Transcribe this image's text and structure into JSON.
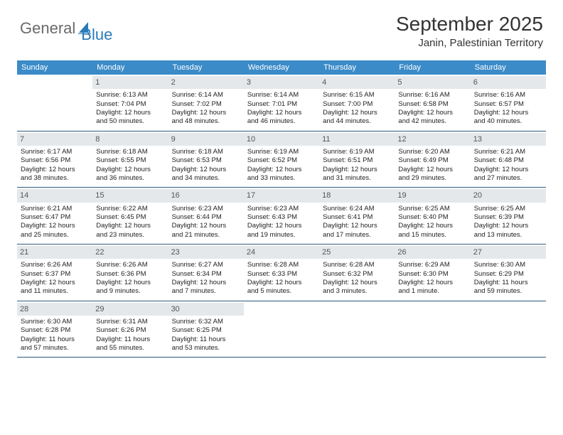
{
  "logo": {
    "text1": "General",
    "text2": "Blue"
  },
  "title": "September 2025",
  "location": "Janin, Palestinian Territory",
  "header_bg": "#3b8bc8",
  "row_border": "#2e5a7c",
  "daynum_bg": "#e4e8eb",
  "weekdays": [
    "Sunday",
    "Monday",
    "Tuesday",
    "Wednesday",
    "Thursday",
    "Friday",
    "Saturday"
  ],
  "weeks": [
    [
      null,
      {
        "d": "1",
        "sr": "Sunrise: 6:13 AM",
        "ss": "Sunset: 7:04 PM",
        "dl1": "Daylight: 12 hours",
        "dl2": "and 50 minutes."
      },
      {
        "d": "2",
        "sr": "Sunrise: 6:14 AM",
        "ss": "Sunset: 7:02 PM",
        "dl1": "Daylight: 12 hours",
        "dl2": "and 48 minutes."
      },
      {
        "d": "3",
        "sr": "Sunrise: 6:14 AM",
        "ss": "Sunset: 7:01 PM",
        "dl1": "Daylight: 12 hours",
        "dl2": "and 46 minutes."
      },
      {
        "d": "4",
        "sr": "Sunrise: 6:15 AM",
        "ss": "Sunset: 7:00 PM",
        "dl1": "Daylight: 12 hours",
        "dl2": "and 44 minutes."
      },
      {
        "d": "5",
        "sr": "Sunrise: 6:16 AM",
        "ss": "Sunset: 6:58 PM",
        "dl1": "Daylight: 12 hours",
        "dl2": "and 42 minutes."
      },
      {
        "d": "6",
        "sr": "Sunrise: 6:16 AM",
        "ss": "Sunset: 6:57 PM",
        "dl1": "Daylight: 12 hours",
        "dl2": "and 40 minutes."
      }
    ],
    [
      {
        "d": "7",
        "sr": "Sunrise: 6:17 AM",
        "ss": "Sunset: 6:56 PM",
        "dl1": "Daylight: 12 hours",
        "dl2": "and 38 minutes."
      },
      {
        "d": "8",
        "sr": "Sunrise: 6:18 AM",
        "ss": "Sunset: 6:55 PM",
        "dl1": "Daylight: 12 hours",
        "dl2": "and 36 minutes."
      },
      {
        "d": "9",
        "sr": "Sunrise: 6:18 AM",
        "ss": "Sunset: 6:53 PM",
        "dl1": "Daylight: 12 hours",
        "dl2": "and 34 minutes."
      },
      {
        "d": "10",
        "sr": "Sunrise: 6:19 AM",
        "ss": "Sunset: 6:52 PM",
        "dl1": "Daylight: 12 hours",
        "dl2": "and 33 minutes."
      },
      {
        "d": "11",
        "sr": "Sunrise: 6:19 AM",
        "ss": "Sunset: 6:51 PM",
        "dl1": "Daylight: 12 hours",
        "dl2": "and 31 minutes."
      },
      {
        "d": "12",
        "sr": "Sunrise: 6:20 AM",
        "ss": "Sunset: 6:49 PM",
        "dl1": "Daylight: 12 hours",
        "dl2": "and 29 minutes."
      },
      {
        "d": "13",
        "sr": "Sunrise: 6:21 AM",
        "ss": "Sunset: 6:48 PM",
        "dl1": "Daylight: 12 hours",
        "dl2": "and 27 minutes."
      }
    ],
    [
      {
        "d": "14",
        "sr": "Sunrise: 6:21 AM",
        "ss": "Sunset: 6:47 PM",
        "dl1": "Daylight: 12 hours",
        "dl2": "and 25 minutes."
      },
      {
        "d": "15",
        "sr": "Sunrise: 6:22 AM",
        "ss": "Sunset: 6:45 PM",
        "dl1": "Daylight: 12 hours",
        "dl2": "and 23 minutes."
      },
      {
        "d": "16",
        "sr": "Sunrise: 6:23 AM",
        "ss": "Sunset: 6:44 PM",
        "dl1": "Daylight: 12 hours",
        "dl2": "and 21 minutes."
      },
      {
        "d": "17",
        "sr": "Sunrise: 6:23 AM",
        "ss": "Sunset: 6:43 PM",
        "dl1": "Daylight: 12 hours",
        "dl2": "and 19 minutes."
      },
      {
        "d": "18",
        "sr": "Sunrise: 6:24 AM",
        "ss": "Sunset: 6:41 PM",
        "dl1": "Daylight: 12 hours",
        "dl2": "and 17 minutes."
      },
      {
        "d": "19",
        "sr": "Sunrise: 6:25 AM",
        "ss": "Sunset: 6:40 PM",
        "dl1": "Daylight: 12 hours",
        "dl2": "and 15 minutes."
      },
      {
        "d": "20",
        "sr": "Sunrise: 6:25 AM",
        "ss": "Sunset: 6:39 PM",
        "dl1": "Daylight: 12 hours",
        "dl2": "and 13 minutes."
      }
    ],
    [
      {
        "d": "21",
        "sr": "Sunrise: 6:26 AM",
        "ss": "Sunset: 6:37 PM",
        "dl1": "Daylight: 12 hours",
        "dl2": "and 11 minutes."
      },
      {
        "d": "22",
        "sr": "Sunrise: 6:26 AM",
        "ss": "Sunset: 6:36 PM",
        "dl1": "Daylight: 12 hours",
        "dl2": "and 9 minutes."
      },
      {
        "d": "23",
        "sr": "Sunrise: 6:27 AM",
        "ss": "Sunset: 6:34 PM",
        "dl1": "Daylight: 12 hours",
        "dl2": "and 7 minutes."
      },
      {
        "d": "24",
        "sr": "Sunrise: 6:28 AM",
        "ss": "Sunset: 6:33 PM",
        "dl1": "Daylight: 12 hours",
        "dl2": "and 5 minutes."
      },
      {
        "d": "25",
        "sr": "Sunrise: 6:28 AM",
        "ss": "Sunset: 6:32 PM",
        "dl1": "Daylight: 12 hours",
        "dl2": "and 3 minutes."
      },
      {
        "d": "26",
        "sr": "Sunrise: 6:29 AM",
        "ss": "Sunset: 6:30 PM",
        "dl1": "Daylight: 12 hours",
        "dl2": "and 1 minute."
      },
      {
        "d": "27",
        "sr": "Sunrise: 6:30 AM",
        "ss": "Sunset: 6:29 PM",
        "dl1": "Daylight: 11 hours",
        "dl2": "and 59 minutes."
      }
    ],
    [
      {
        "d": "28",
        "sr": "Sunrise: 6:30 AM",
        "ss": "Sunset: 6:28 PM",
        "dl1": "Daylight: 11 hours",
        "dl2": "and 57 minutes."
      },
      {
        "d": "29",
        "sr": "Sunrise: 6:31 AM",
        "ss": "Sunset: 6:26 PM",
        "dl1": "Daylight: 11 hours",
        "dl2": "and 55 minutes."
      },
      {
        "d": "30",
        "sr": "Sunrise: 6:32 AM",
        "ss": "Sunset: 6:25 PM",
        "dl1": "Daylight: 11 hours",
        "dl2": "and 53 minutes."
      },
      null,
      null,
      null,
      null
    ]
  ]
}
